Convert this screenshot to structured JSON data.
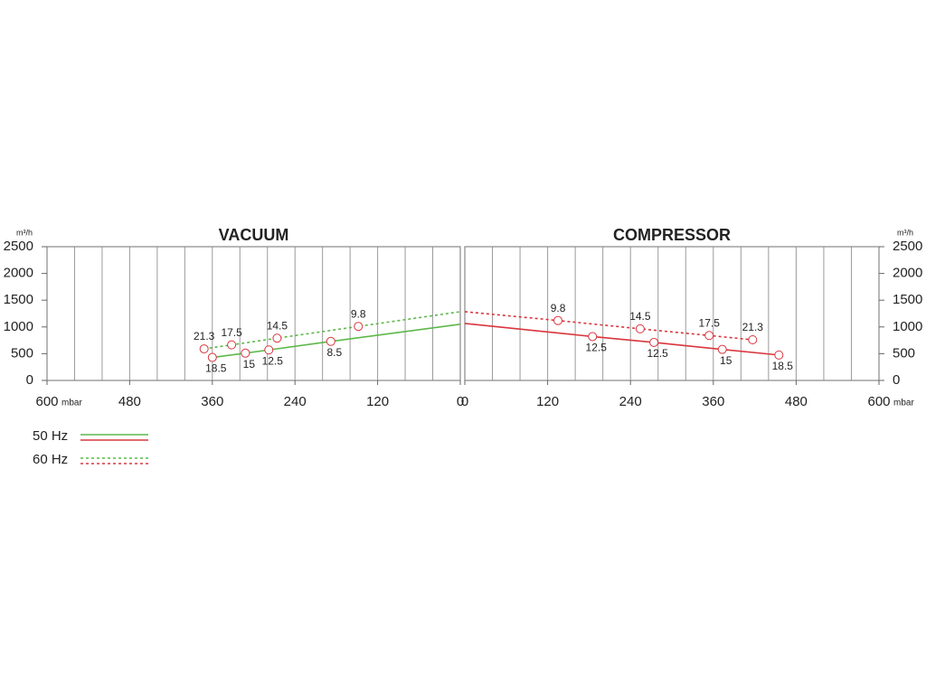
{
  "chart_data": [
    {
      "type": "line",
      "title": "VACUUM",
      "y_unit": "m³/h",
      "x_unit": "mbar",
      "y_axis_side": "left",
      "legend": "bottom-left",
      "xlim": [
        600,
        0
      ],
      "xticks": [
        600,
        480,
        360,
        240,
        120,
        0
      ],
      "x_grid": [
        600,
        560,
        520,
        480,
        440,
        400,
        360,
        320,
        280,
        240,
        200,
        160,
        120,
        80,
        40,
        0
      ],
      "ylim": [
        0,
        2500
      ],
      "yticks": [
        0,
        500,
        1000,
        1500,
        2000,
        2500
      ],
      "series": [
        {
          "name": "50 Hz",
          "color": "#5cb848",
          "dashed": false,
          "x": [
            360,
            312,
            278,
            188,
            0
          ],
          "values": [
            430,
            510,
            570,
            730,
            1050
          ],
          "point_labels": [
            18.5,
            15,
            12.5,
            8.5,
            null
          ]
        },
        {
          "name": "60 Hz",
          "color": "#5cb848",
          "dashed": true,
          "x": [
            372,
            332,
            266,
            148,
            0
          ],
          "values": [
            590,
            665,
            790,
            1010,
            1285
          ],
          "point_labels": [
            21.3,
            17.5,
            14.5,
            9.8,
            null
          ]
        }
      ]
    },
    {
      "type": "line",
      "title": "COMPRESSOR",
      "y_unit": "m³/h",
      "x_unit": "mbar",
      "y_axis_side": "right",
      "xlim": [
        0,
        600
      ],
      "xticks": [
        0,
        120,
        240,
        360,
        480,
        600
      ],
      "x_grid": [
        0,
        40,
        80,
        120,
        160,
        200,
        240,
        280,
        320,
        360,
        400,
        440,
        480,
        520,
        560,
        600
      ],
      "ylim": [
        0,
        2500
      ],
      "yticks": [
        0,
        500,
        1000,
        1500,
        2000,
        2500
      ],
      "series": [
        {
          "name": "50 Hz",
          "color": "#d9363e",
          "dashed": false,
          "x": [
            0,
            185,
            274,
            373,
            455
          ],
          "values": [
            1065,
            820,
            710,
            580,
            475
          ],
          "point_labels": [
            null,
            12.5,
            12.5,
            15,
            18.5
          ]
        },
        {
          "name": "60 Hz",
          "color": "#d9363e",
          "dashed": true,
          "x": [
            0,
            135,
            254,
            354,
            417
          ],
          "values": [
            1285,
            1120,
            965,
            840,
            760
          ],
          "point_labels": [
            null,
            9.8,
            14.5,
            17.5,
            21.3
          ]
        }
      ]
    }
  ]
}
